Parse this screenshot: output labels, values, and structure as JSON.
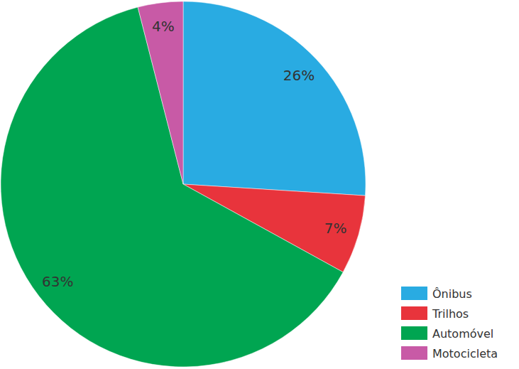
{
  "chart_data": {
    "type": "pie",
    "categories": [
      "Ônibus",
      "Trilhos",
      "Automóvel",
      "Motocicleta"
    ],
    "values": [
      26,
      7,
      63,
      4
    ],
    "value_labels": [
      "26%",
      "7%",
      "63%",
      "4%"
    ],
    "colors": [
      "#29abe2",
      "#e8343c",
      "#00a551",
      "#c85aa6"
    ],
    "data_labels": true,
    "legend": "lower right"
  }
}
